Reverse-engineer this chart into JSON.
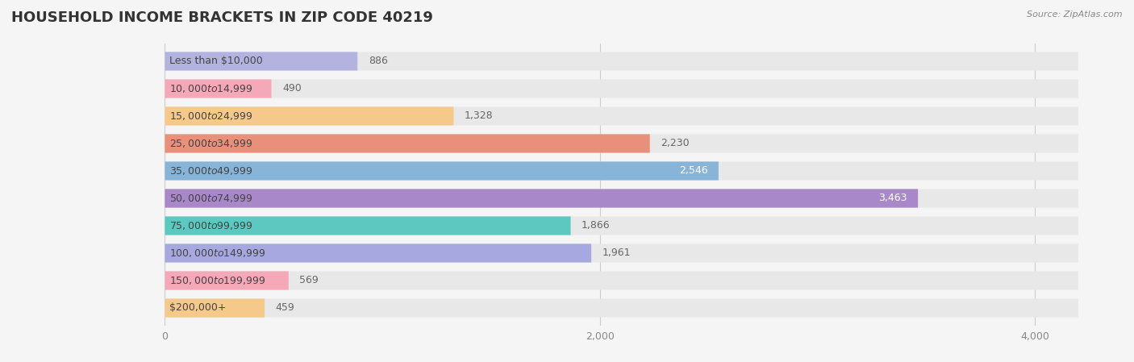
{
  "title": "HOUSEHOLD INCOME BRACKETS IN ZIP CODE 40219",
  "source": "Source: ZipAtlas.com",
  "categories": [
    "Less than $10,000",
    "$10,000 to $14,999",
    "$15,000 to $24,999",
    "$25,000 to $34,999",
    "$35,000 to $49,999",
    "$50,000 to $74,999",
    "$75,000 to $99,999",
    "$100,000 to $149,999",
    "$150,000 to $199,999",
    "$200,000+"
  ],
  "values": [
    886,
    490,
    1328,
    2230,
    2546,
    3463,
    1866,
    1961,
    569,
    459
  ],
  "bar_colors": [
    "#b3b3e0",
    "#f4a8b8",
    "#f5c98a",
    "#e8907a",
    "#88b4d8",
    "#a888c8",
    "#5cc8c0",
    "#a8a8e0",
    "#f4a8b8",
    "#f5c98a"
  ],
  "value_label_colors": [
    "#666666",
    "#666666",
    "#666666",
    "#666666",
    "#ffffff",
    "#ffffff",
    "#666666",
    "#666666",
    "#666666",
    "#666666"
  ],
  "value_label_inside": [
    false,
    false,
    false,
    false,
    true,
    true,
    false,
    false,
    false,
    false
  ],
  "xlim_min": -80,
  "xlim_max": 4300,
  "bg_bar_width": 4200,
  "xticks": [
    0,
    2000,
    4000
  ],
  "background_color": "#f5f5f5",
  "bar_background_color": "#e8e8e8",
  "title_fontsize": 13,
  "label_fontsize": 9,
  "value_fontsize": 9,
  "bar_height": 0.65,
  "bar_gap": 1.0
}
